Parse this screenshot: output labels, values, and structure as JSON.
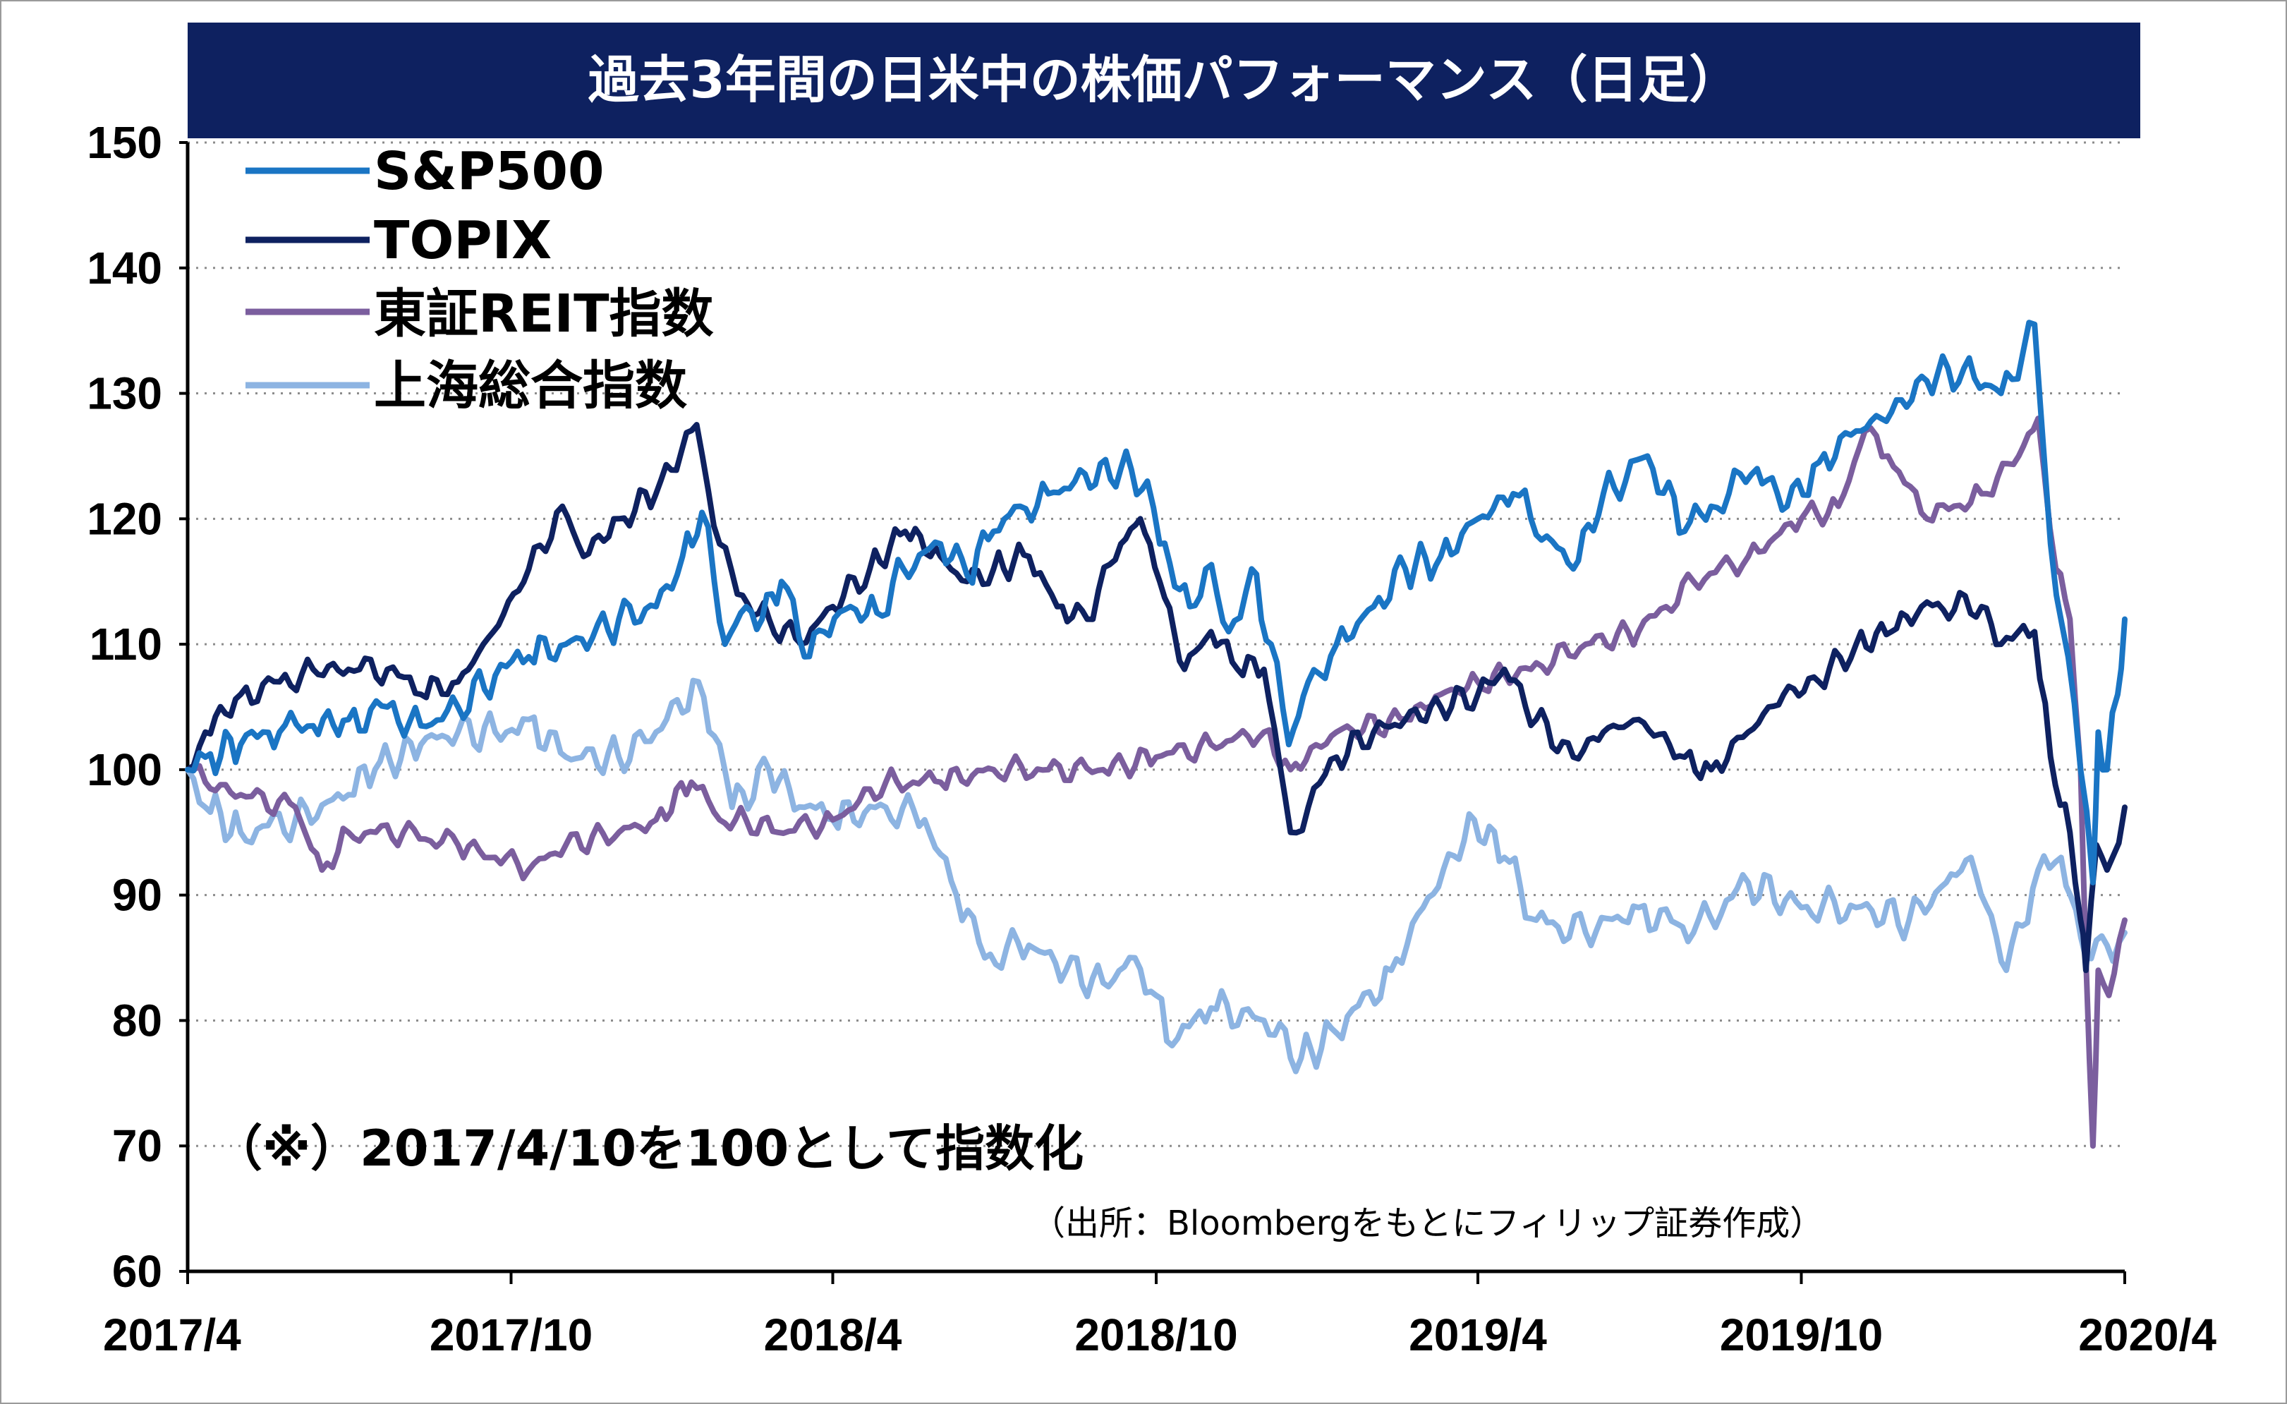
{
  "chart_data": {
    "type": "line",
    "title": "過去3年間の日米中の株価パフォーマンス（日足）",
    "note": "（※）2017/4/10を100として指数化",
    "source": "（出所：Bloombergをもとにフィリップ証券作成）",
    "ylim": [
      60,
      150
    ],
    "yticks": [
      "60",
      "70",
      "80",
      "90",
      "100",
      "110",
      "120",
      "130",
      "140",
      "150"
    ],
    "xlim": [
      "2017-04-10",
      "2020-04-10"
    ],
    "xticks": [
      {
        "label": "2017/4",
        "date": "2017-04-10"
      },
      {
        "label": "2017/10",
        "date": "2017-10-10"
      },
      {
        "label": "2018/4",
        "date": "2018-04-10"
      },
      {
        "label": "2018/10",
        "date": "2018-10-10"
      },
      {
        "label": "2019/4",
        "date": "2019-04-10"
      },
      {
        "label": "2019/10",
        "date": "2019-10-10"
      },
      {
        "label": "2020/4",
        "date": "2020-04-10"
      }
    ],
    "grid": true,
    "legend_position": "top-left",
    "series": [
      {
        "name": "S&P500",
        "color": "#1a75c4",
        "points": [
          [
            "2017-04-10",
            100
          ],
          [
            "2017-04-20",
            101
          ],
          [
            "2017-05-10",
            102
          ],
          [
            "2017-06-01",
            103
          ],
          [
            "2017-06-20",
            103.5
          ],
          [
            "2017-07-10",
            104
          ],
          [
            "2017-08-01",
            105
          ],
          [
            "2017-08-20",
            103.5
          ],
          [
            "2017-09-10",
            105
          ],
          [
            "2017-10-01",
            107.5
          ],
          [
            "2017-10-20",
            109
          ],
          [
            "2017-11-10",
            110
          ],
          [
            "2017-11-25",
            110.5
          ],
          [
            "2017-12-10",
            112
          ],
          [
            "2017-12-31",
            113
          ],
          [
            "2018-01-15",
            117
          ],
          [
            "2018-01-26",
            120.5
          ],
          [
            "2018-02-02",
            115
          ],
          [
            "2018-02-08",
            110
          ],
          [
            "2018-02-20",
            113
          ],
          [
            "2018-03-01",
            112
          ],
          [
            "2018-03-12",
            115
          ],
          [
            "2018-03-25",
            109
          ],
          [
            "2018-04-05",
            111
          ],
          [
            "2018-04-20",
            113
          ],
          [
            "2018-05-05",
            112.5
          ],
          [
            "2018-05-20",
            116
          ],
          [
            "2018-06-10",
            118
          ],
          [
            "2018-06-25",
            115.5
          ],
          [
            "2018-07-10",
            119
          ],
          [
            "2018-07-25",
            121
          ],
          [
            "2018-08-10",
            122
          ],
          [
            "2018-08-25",
            123
          ],
          [
            "2018-09-20",
            124
          ],
          [
            "2018-10-05",
            123
          ],
          [
            "2018-10-12",
            118
          ],
          [
            "2018-10-29",
            113
          ],
          [
            "2018-11-07",
            116
          ],
          [
            "2018-11-20",
            111
          ],
          [
            "2018-12-03",
            116
          ],
          [
            "2018-12-14",
            110
          ],
          [
            "2018-12-24",
            102
          ],
          [
            "2019-01-04",
            107
          ],
          [
            "2019-01-20",
            110
          ],
          [
            "2019-02-10",
            113
          ],
          [
            "2019-02-28",
            116
          ],
          [
            "2019-03-20",
            117
          ],
          [
            "2019-04-10",
            120
          ],
          [
            "2019-04-30",
            122
          ],
          [
            "2019-05-10",
            120
          ],
          [
            "2019-06-03",
            116
          ],
          [
            "2019-06-20",
            122
          ],
          [
            "2019-07-15",
            125
          ],
          [
            "2019-08-05",
            119
          ],
          [
            "2019-08-20",
            121
          ],
          [
            "2019-08-30",
            122
          ],
          [
            "2019-09-15",
            124
          ],
          [
            "2019-10-02",
            121
          ],
          [
            "2019-10-20",
            124.5
          ],
          [
            "2019-11-10",
            127
          ],
          [
            "2019-11-30",
            128.5
          ],
          [
            "2019-12-20",
            131
          ],
          [
            "2020-01-10",
            132
          ],
          [
            "2020-01-31",
            130
          ],
          [
            "2020-02-19",
            135.5
          ],
          [
            "2020-02-28",
            118
          ],
          [
            "2020-03-09",
            109
          ],
          [
            "2020-03-16",
            100
          ],
          [
            "2020-03-23",
            91
          ],
          [
            "2020-03-26",
            103
          ],
          [
            "2020-03-31",
            100
          ],
          [
            "2020-04-06",
            106
          ],
          [
            "2020-04-10",
            112
          ]
        ]
      },
      {
        "name": "TOPIX",
        "color": "#0e2160",
        "points": [
          [
            "2017-04-10",
            100
          ],
          [
            "2017-04-20",
            103
          ],
          [
            "2017-05-10",
            106
          ],
          [
            "2017-06-01",
            107
          ],
          [
            "2017-06-20",
            108
          ],
          [
            "2017-07-10",
            108
          ],
          [
            "2017-08-01",
            108
          ],
          [
            "2017-08-20",
            106
          ],
          [
            "2017-09-10",
            107
          ],
          [
            "2017-09-30",
            111
          ],
          [
            "2017-10-20",
            116
          ],
          [
            "2017-11-08",
            121
          ],
          [
            "2017-11-20",
            117
          ],
          [
            "2017-12-10",
            120
          ],
          [
            "2017-12-31",
            122
          ],
          [
            "2018-01-23",
            127.5
          ],
          [
            "2018-02-05",
            118
          ],
          [
            "2018-02-15",
            114
          ],
          [
            "2018-03-05",
            112
          ],
          [
            "2018-03-23",
            110
          ],
          [
            "2018-04-10",
            113
          ],
          [
            "2018-05-01",
            116
          ],
          [
            "2018-05-21",
            119
          ],
          [
            "2018-06-10",
            117
          ],
          [
            "2018-06-25",
            115
          ],
          [
            "2018-07-10",
            116
          ],
          [
            "2018-07-30",
            117
          ],
          [
            "2018-08-15",
            113
          ],
          [
            "2018-09-01",
            112
          ],
          [
            "2018-09-20",
            118
          ],
          [
            "2018-10-01",
            120
          ],
          [
            "2018-10-12",
            115
          ],
          [
            "2018-10-26",
            108
          ],
          [
            "2018-11-10",
            111
          ],
          [
            "2018-11-25",
            108
          ],
          [
            "2018-12-10",
            108
          ],
          [
            "2018-12-25",
            95
          ],
          [
            "2019-01-04",
            97
          ],
          [
            "2019-01-20",
            101
          ],
          [
            "2019-02-10",
            103
          ],
          [
            "2019-02-28",
            104
          ],
          [
            "2019-03-20",
            105
          ],
          [
            "2019-04-10",
            106
          ],
          [
            "2019-04-25",
            108
          ],
          [
            "2019-05-13",
            104
          ],
          [
            "2019-06-03",
            101
          ],
          [
            "2019-06-20",
            103
          ],
          [
            "2019-07-10",
            104
          ],
          [
            "2019-08-05",
            101
          ],
          [
            "2019-08-20",
            100
          ],
          [
            "2019-09-10",
            103
          ],
          [
            "2019-09-30",
            106
          ],
          [
            "2019-10-20",
            107
          ],
          [
            "2019-11-10",
            110
          ],
          [
            "2019-11-30",
            111
          ],
          [
            "2019-12-17",
            113
          ],
          [
            "2020-01-20",
            113
          ],
          [
            "2020-01-31",
            110
          ],
          [
            "2020-02-19",
            111
          ],
          [
            "2020-02-28",
            101
          ],
          [
            "2020-03-10",
            95
          ],
          [
            "2020-03-16",
            88
          ],
          [
            "2020-03-19",
            84
          ],
          [
            "2020-03-25",
            94
          ],
          [
            "2020-03-31",
            92
          ],
          [
            "2020-04-10",
            97
          ]
        ]
      },
      {
        "name": "東証REIT指数",
        "color": "#7b5e9e",
        "points": [
          [
            "2017-04-10",
            100
          ],
          [
            "2017-04-20",
            99
          ],
          [
            "2017-05-10",
            98
          ],
          [
            "2017-06-10",
            97
          ],
          [
            "2017-06-25",
            92
          ],
          [
            "2017-07-10",
            95
          ],
          [
            "2017-08-10",
            95
          ],
          [
            "2017-09-10",
            94
          ],
          [
            "2017-10-01",
            93
          ],
          [
            "2017-10-20",
            92
          ],
          [
            "2017-11-10",
            94
          ],
          [
            "2017-12-10",
            95
          ],
          [
            "2017-12-31",
            96
          ],
          [
            "2018-01-20",
            99
          ],
          [
            "2018-02-05",
            96
          ],
          [
            "2018-02-20",
            96
          ],
          [
            "2018-03-10",
            95
          ],
          [
            "2018-04-10",
            96
          ],
          [
            "2018-05-10",
            99
          ],
          [
            "2018-06-10",
            99
          ],
          [
            "2018-07-10",
            100
          ],
          [
            "2018-08-10",
            100
          ],
          [
            "2018-09-10",
            100
          ],
          [
            "2018-10-10",
            101
          ],
          [
            "2018-11-10",
            102
          ],
          [
            "2018-12-10",
            103
          ],
          [
            "2018-12-25",
            100
          ],
          [
            "2019-01-20",
            103
          ],
          [
            "2019-02-28",
            104
          ],
          [
            "2019-03-20",
            106
          ],
          [
            "2019-04-10",
            107
          ],
          [
            "2019-05-10",
            108
          ],
          [
            "2019-06-10",
            110
          ],
          [
            "2019-07-10",
            111
          ],
          [
            "2019-08-10",
            115
          ],
          [
            "2019-09-10",
            117
          ],
          [
            "2019-10-10",
            120
          ],
          [
            "2019-10-31",
            121
          ],
          [
            "2019-11-15",
            127
          ],
          [
            "2019-11-28",
            125
          ],
          [
            "2019-12-20",
            120
          ],
          [
            "2020-01-20",
            122
          ],
          [
            "2020-02-10",
            125
          ],
          [
            "2020-02-21",
            128
          ],
          [
            "2020-03-02",
            116
          ],
          [
            "2020-03-10",
            112
          ],
          [
            "2020-03-16",
            100
          ],
          [
            "2020-03-19",
            85
          ],
          [
            "2020-03-23",
            70
          ],
          [
            "2020-03-26",
            84
          ],
          [
            "2020-04-01",
            82
          ],
          [
            "2020-04-10",
            88
          ]
        ]
      },
      {
        "name": "上海総合指数",
        "color": "#8db4e2",
        "points": [
          [
            "2017-04-10",
            100
          ],
          [
            "2017-04-20",
            97
          ],
          [
            "2017-05-10",
            95
          ],
          [
            "2017-06-10",
            96
          ],
          [
            "2017-07-10",
            98
          ],
          [
            "2017-07-25",
            100
          ],
          [
            "2017-08-20",
            102
          ],
          [
            "2017-09-10",
            103
          ],
          [
            "2017-10-01",
            103
          ],
          [
            "2017-10-20",
            104
          ],
          [
            "2017-11-10",
            101
          ],
          [
            "2017-12-10",
            101
          ],
          [
            "2017-12-31",
            103
          ],
          [
            "2018-01-24",
            107
          ],
          [
            "2018-02-05",
            102
          ],
          [
            "2018-02-12",
            97
          ],
          [
            "2018-03-05",
            100
          ],
          [
            "2018-03-25",
            97
          ],
          [
            "2018-04-10",
            96
          ],
          [
            "2018-05-10",
            97
          ],
          [
            "2018-06-01",
            96
          ],
          [
            "2018-06-19",
            90
          ],
          [
            "2018-07-05",
            85
          ],
          [
            "2018-07-30",
            86
          ],
          [
            "2018-08-20",
            84
          ],
          [
            "2018-09-10",
            83
          ],
          [
            "2018-09-28",
            85
          ],
          [
            "2018-10-10",
            82
          ],
          [
            "2018-10-19",
            78
          ],
          [
            "2018-11-10",
            81
          ],
          [
            "2018-12-10",
            80
          ],
          [
            "2018-12-31",
            77
          ],
          [
            "2019-01-20",
            79
          ],
          [
            "2019-02-20",
            84
          ],
          [
            "2019-03-10",
            89
          ],
          [
            "2019-04-08",
            96
          ],
          [
            "2019-04-25",
            93
          ],
          [
            "2019-05-13",
            88
          ],
          [
            "2019-06-10",
            87
          ],
          [
            "2019-07-10",
            89
          ],
          [
            "2019-08-10",
            87
          ],
          [
            "2019-09-10",
            91
          ],
          [
            "2019-10-10",
            89
          ],
          [
            "2019-11-10",
            89
          ],
          [
            "2019-12-10",
            88
          ],
          [
            "2019-12-31",
            91
          ],
          [
            "2020-01-14",
            93
          ],
          [
            "2020-02-03",
            84
          ],
          [
            "2020-02-21",
            92
          ],
          [
            "2020-03-05",
            93
          ],
          [
            "2020-03-19",
            85
          ],
          [
            "2020-03-31",
            86
          ],
          [
            "2020-04-10",
            87
          ]
        ]
      }
    ]
  }
}
